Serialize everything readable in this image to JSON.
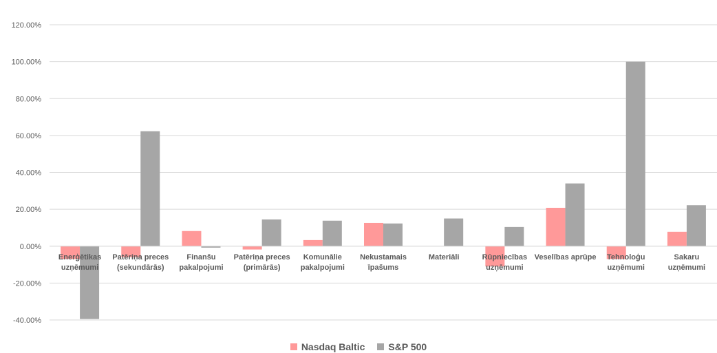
{
  "chart_data": {
    "type": "bar",
    "title": "",
    "xlabel": "",
    "ylabel": "",
    "ylim": [
      -40,
      120
    ],
    "y_ticks": [
      "-40.00%",
      "-20.00%",
      "0.00%",
      "20.00%",
      "40.00%",
      "60.00%",
      "80.00%",
      "100.00%",
      "120.00%"
    ],
    "grid": true,
    "legend_position": "bottom",
    "categories": [
      [
        "Enerģētikas",
        "uzņēmumi"
      ],
      [
        "Patēriņa preces",
        "(sekundārās)"
      ],
      [
        "Finanšu",
        "pakalpojumi"
      ],
      [
        "Patēriņa preces",
        "(primārās)"
      ],
      [
        "Komunālie",
        "pakalpojumi"
      ],
      [
        "Nekustamais",
        "īpašums"
      ],
      [
        "Materiāli"
      ],
      [
        "Rūpniecības",
        "uzņēmumi"
      ],
      [
        "Veselības aprūpe"
      ],
      [
        "Tehnoloģu",
        "uzņēmumi"
      ],
      [
        "Sakaru",
        "uzņēmumi"
      ]
    ],
    "series": [
      {
        "name": "Nasdaq Baltic",
        "color": "#FF9999",
        "values": [
          -7,
          -6,
          8.2,
          -1.8,
          3.3,
          12.6,
          0,
          -11,
          20.8,
          -7,
          7.8
        ]
      },
      {
        "name": "S&P 500",
        "color": "#A6A6A6",
        "values": [
          -39.5,
          62.3,
          -0.8,
          14.5,
          13.8,
          12.3,
          15,
          10.4,
          34,
          100,
          22.2
        ]
      }
    ]
  }
}
